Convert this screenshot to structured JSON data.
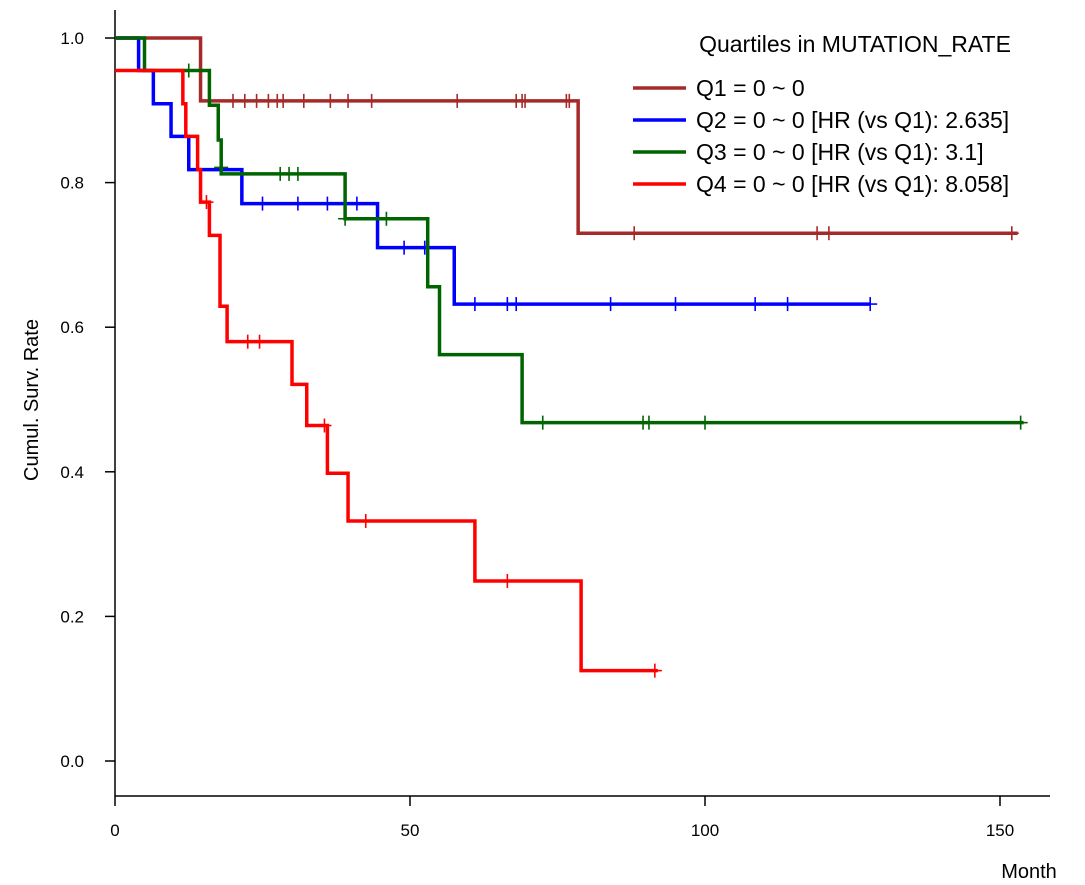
{
  "chart_data": {
    "type": "line",
    "subtype": "kaplan-meier",
    "xlabel": "Month",
    "ylabel": "Cumul. Surv. Rate",
    "xlim": [
      0,
      160
    ],
    "ylim": [
      0.0,
      1.0
    ],
    "x_ticks": [
      "0",
      "50",
      "100",
      "150"
    ],
    "y_ticks": [
      "0.0",
      "0.2",
      "0.4",
      "0.6",
      "0.8",
      "1.0"
    ],
    "grid": false,
    "legend": {
      "title": "Quartiles in MUTATION_RATE",
      "placement": "top-right"
    },
    "series": [
      {
        "name": "Q1 = 0 ~ 0",
        "color": "#a52a2a",
        "steps": [
          [
            0,
            1.0
          ],
          [
            14.5,
            0.913
          ],
          [
            78.5,
            0.73
          ],
          [
            153,
            0.73
          ]
        ],
        "censored": [
          [
            20,
            0.913
          ],
          [
            22,
            0.913
          ],
          [
            24,
            0.913
          ],
          [
            26,
            0.913
          ],
          [
            27.5,
            0.913
          ],
          [
            28.5,
            0.913
          ],
          [
            32,
            0.913
          ],
          [
            36.5,
            0.913
          ],
          [
            39.5,
            0.913
          ],
          [
            43.5,
            0.913
          ],
          [
            58,
            0.913
          ],
          [
            68,
            0.913
          ],
          [
            69,
            0.913
          ],
          [
            69.5,
            0.913
          ],
          [
            76.5,
            0.913
          ],
          [
            77,
            0.913
          ],
          [
            88,
            0.73
          ],
          [
            119,
            0.73
          ],
          [
            121,
            0.73
          ],
          [
            152,
            0.73
          ]
        ]
      },
      {
        "name": "Q2 = 0 ~ 0 [HR (vs Q1): 2.635]",
        "color": "#0000ff",
        "steps": [
          [
            0,
            1.0
          ],
          [
            4,
            0.955
          ],
          [
            6.5,
            0.909
          ],
          [
            9.5,
            0.864
          ],
          [
            12.5,
            0.818
          ],
          [
            21.5,
            0.771
          ],
          [
            44.5,
            0.71
          ],
          [
            57.5,
            0.632
          ],
          [
            128,
            0.632
          ]
        ],
        "censored": [
          [
            25,
            0.771
          ],
          [
            31,
            0.771
          ],
          [
            36,
            0.771
          ],
          [
            41,
            0.771
          ],
          [
            49,
            0.71
          ],
          [
            52.5,
            0.71
          ],
          [
            61,
            0.632
          ],
          [
            66.5,
            0.632
          ],
          [
            68,
            0.632
          ],
          [
            84,
            0.632
          ],
          [
            95,
            0.632
          ],
          [
            108.5,
            0.632
          ],
          [
            114,
            0.632
          ],
          [
            128,
            0.632
          ]
        ]
      },
      {
        "name": "Q3 = 0 ~ 0 [HR (vs Q1): 3.1]",
        "color": "#006400",
        "steps": [
          [
            0,
            1.0
          ],
          [
            5,
            0.955
          ],
          [
            16,
            0.907
          ],
          [
            17.5,
            0.859
          ],
          [
            18,
            0.812
          ],
          [
            39,
            0.75
          ],
          [
            53,
            0.656
          ],
          [
            55,
            0.562
          ],
          [
            69,
            0.468
          ],
          [
            154,
            0.468
          ]
        ],
        "censored": [
          [
            12.5,
            0.955
          ],
          [
            18,
            0.821
          ],
          [
            28,
            0.812
          ],
          [
            29.5,
            0.812
          ],
          [
            31,
            0.812
          ],
          [
            39,
            0.75
          ],
          [
            46,
            0.75
          ],
          [
            72.5,
            0.468
          ],
          [
            89.5,
            0.468
          ],
          [
            90.5,
            0.468
          ],
          [
            100,
            0.468
          ],
          [
            153.5,
            0.468
          ]
        ]
      },
      {
        "name": "Q4 = 0 ~ 0 [HR (vs Q1): 8.058]",
        "color": "#ff0000",
        "steps": [
          [
            0,
            0.955
          ],
          [
            11.5,
            0.909
          ],
          [
            12,
            0.864
          ],
          [
            14,
            0.818
          ],
          [
            14.5,
            0.773
          ],
          [
            16,
            0.727
          ],
          [
            17.8,
            0.629
          ],
          [
            19,
            0.58
          ],
          [
            30,
            0.521
          ],
          [
            32.5,
            0.464
          ],
          [
            36,
            0.398
          ],
          [
            39.5,
            0.332
          ],
          [
            61,
            0.249
          ],
          [
            79,
            0.125
          ],
          [
            92,
            0.125
          ]
        ],
        "censored": [
          [
            15.5,
            0.773
          ],
          [
            22.5,
            0.58
          ],
          [
            24.5,
            0.58
          ],
          [
            35.5,
            0.464
          ],
          [
            42.5,
            0.332
          ],
          [
            66.5,
            0.249
          ],
          [
            91.5,
            0.125
          ]
        ]
      }
    ]
  }
}
